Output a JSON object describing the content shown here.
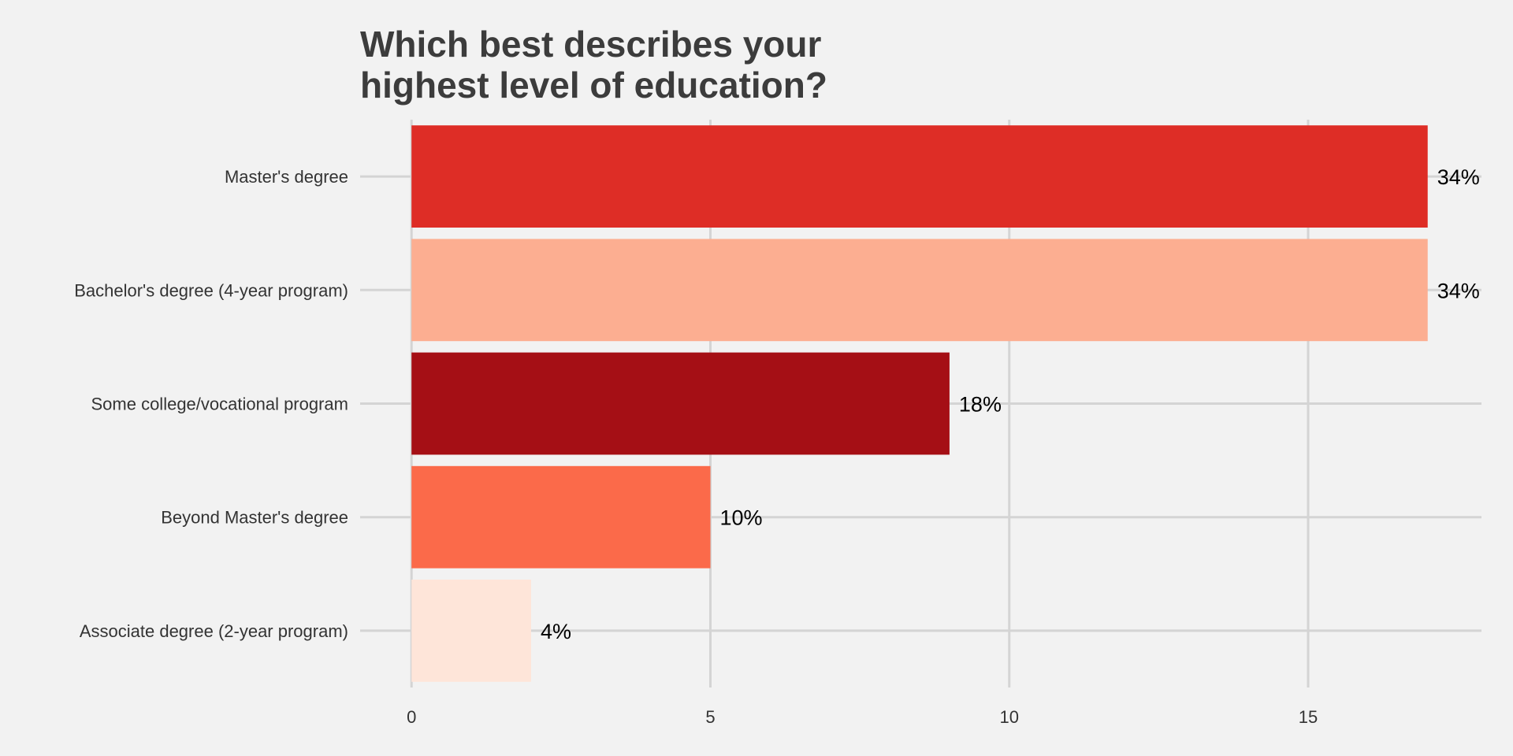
{
  "chart_data": {
    "type": "bar",
    "orientation": "horizontal",
    "title_lines": [
      "Which best describes your",
      "highest level of education?"
    ],
    "categories": [
      "Master's degree",
      "Bachelor's degree (4-year program)",
      "Some college/vocational program",
      "Beyond Master's degree",
      "Associate degree (2-year program)"
    ],
    "values": [
      17,
      17,
      9,
      5,
      2
    ],
    "data_labels": [
      "34%",
      "34%",
      "18%",
      "10%",
      "4%"
    ],
    "colors": [
      "#de2d26",
      "#fcae91",
      "#a50f15",
      "#fb6a4a",
      "#fee5d9"
    ],
    "x_ticks": [
      0,
      5,
      10,
      15
    ],
    "xlim": [
      -0.86,
      17.9
    ],
    "grid": true,
    "legend": "none"
  }
}
